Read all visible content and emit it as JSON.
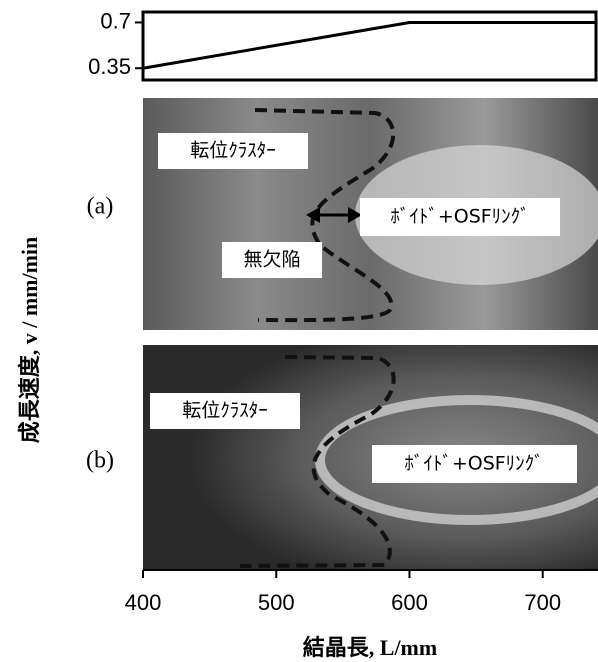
{
  "chart_data": {
    "type": "line",
    "x": [
      400,
      600,
      740
    ],
    "series": [
      {
        "name": null,
        "color": "#000000",
        "values": [
          0.35,
          0.7,
          0.7
        ]
      }
    ],
    "xlim": [
      400,
      740
    ],
    "xticks": [
      400,
      500,
      600,
      700
    ],
    "ylim": [
      0.26,
      0.78
    ],
    "yticks": [
      0.35,
      0.7
    ],
    "xlabel": "結晶長, L/mm",
    "ylabel": "成長速度, v / mm/min",
    "panels": [
      {
        "label": "(a)",
        "annotations": [
          "転位ｸﾗｽﾀｰ",
          "ﾎﾞｲﾄﾞ+OSFﾘﾝｸﾞ",
          "無欠陥"
        ]
      },
      {
        "label": "(b)",
        "annotations": [
          "転位ｸﾗｽﾀｰ",
          "ﾎﾞｲﾄﾞ+OSFﾘﾝｸﾞ"
        ]
      }
    ]
  }
}
